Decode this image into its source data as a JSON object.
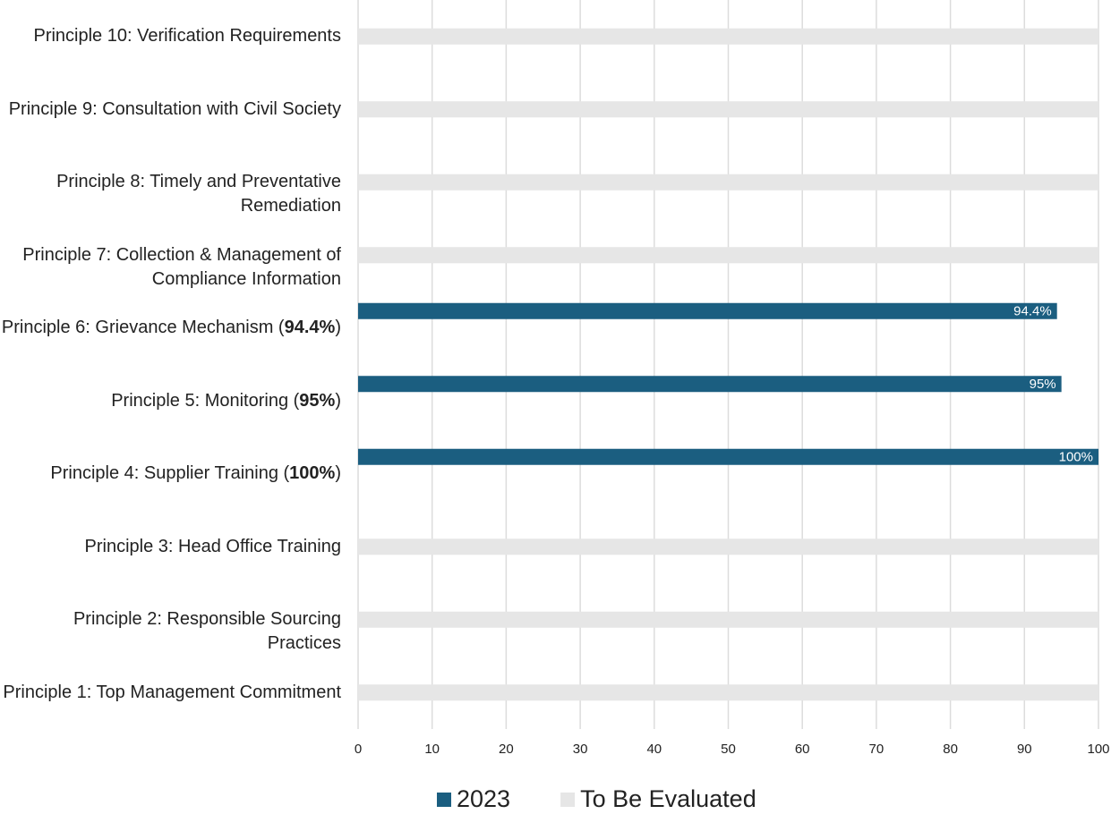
{
  "chart_data": {
    "type": "bar",
    "orientation": "horizontal",
    "categories": [
      "Principle 10: Verification Requirements",
      "Principle 9: Consultation with Civil Society",
      "Principle 8: Timely and Preventative Remediation",
      "Principle 7: Collection & Management of Compliance Information",
      "Principle 6: Grievance Mechanism (94.4%)",
      "Principle 5: Monitoring (95%)",
      "Principle 4: Supplier Training (100%)",
      "Principle 3: Head Office Training",
      "Principle 2: Responsible Sourcing Practices",
      "Principle 1: Top Management Commitment"
    ],
    "series": [
      {
        "name": "2023",
        "color": "#1b5e80",
        "values": [
          null,
          null,
          null,
          null,
          94.4,
          95,
          100,
          null,
          null,
          null
        ],
        "value_labels": [
          null,
          null,
          null,
          null,
          "94.4%",
          "95%",
          "100%",
          null,
          null,
          null
        ]
      },
      {
        "name": "To Be Evaluated",
        "color": "#e6e6e6",
        "values": [
          100,
          100,
          100,
          100,
          null,
          null,
          null,
          100,
          100,
          100
        ]
      }
    ],
    "xlim": [
      0,
      100
    ],
    "xticks": [
      0,
      10,
      20,
      30,
      40,
      50,
      60,
      70,
      80,
      90,
      100
    ],
    "grid": true,
    "legend": "bottom"
  }
}
